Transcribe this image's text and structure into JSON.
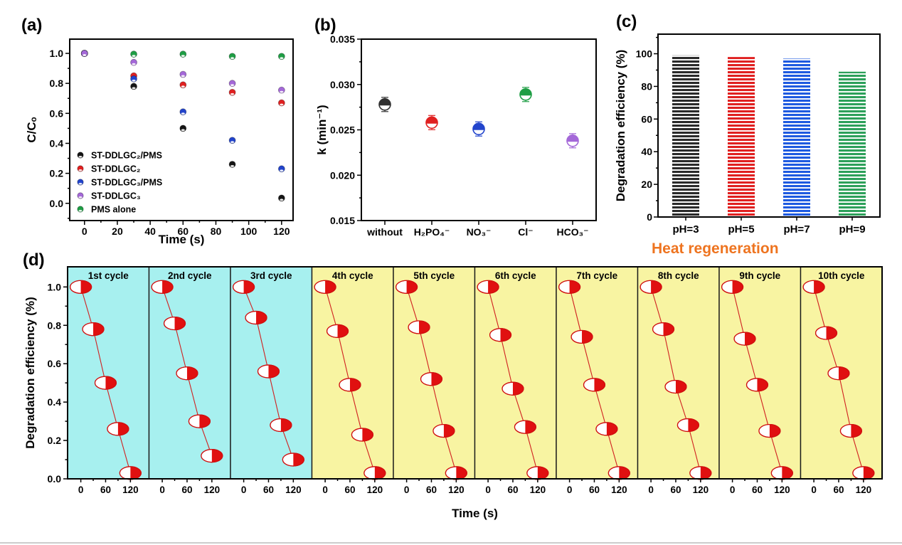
{
  "figure": {
    "background": "#ffffff"
  },
  "annotations": {
    "heat_regeneration": "Heat regeneration",
    "heat_color": "#ee7420"
  },
  "chart_data": [
    {
      "id": "a",
      "panel_label": "(a)",
      "type": "scatter",
      "xlabel": "Time (s)",
      "ylabel": "C/Cₒ",
      "x": [
        0,
        30,
        60,
        90,
        120
      ],
      "xlim": [
        -9,
        127
      ],
      "ylim": [
        -0.115,
        1.095
      ],
      "xticks": [
        0,
        20,
        40,
        60,
        80,
        100,
        120
      ],
      "yticks": [
        0.0,
        0.2,
        0.4,
        0.6,
        0.8,
        1.0
      ],
      "legend_position": "lower-left",
      "series": [
        {
          "name": "ST-DDLGC₂/PMS",
          "color": "#151515",
          "values": [
            1.0,
            0.78,
            0.5,
            0.26,
            0.035
          ]
        },
        {
          "name": "ST-DDLGC₂",
          "color": "#e02020",
          "values": [
            1.0,
            0.85,
            0.79,
            0.74,
            0.67
          ]
        },
        {
          "name": "ST-DDLGC₃/PMS",
          "color": "#2244cc",
          "values": [
            1.0,
            0.83,
            0.61,
            0.42,
            0.23
          ]
        },
        {
          "name": "ST-DDLGC₃",
          "color": "#a468d8",
          "values": [
            1.0,
            0.94,
            0.86,
            0.8,
            0.755
          ]
        },
        {
          "name": "PMS alone",
          "color": "#1f9e45",
          "values": [
            1.0,
            0.995,
            0.995,
            0.98,
            0.98
          ]
        }
      ],
      "draw_order": [
        0,
        1,
        2,
        4,
        3
      ]
    },
    {
      "id": "b",
      "panel_label": "(b)",
      "type": "scatter",
      "ylabel": "k (min⁻¹)",
      "categories": [
        "without",
        "H₂PO₄⁻",
        "NO₃⁻",
        "Cl⁻",
        "HCO₃⁻"
      ],
      "values": [
        0.0278,
        0.0258,
        0.0251,
        0.0289,
        0.0238
      ],
      "colors": [
        "#303030",
        "#e02020",
        "#2244cc",
        "#1f9e45",
        "#a468d8"
      ],
      "ylim": [
        0.015,
        0.035
      ],
      "yticks": [
        0.015,
        0.02,
        0.025,
        0.03,
        0.035
      ]
    },
    {
      "id": "c",
      "panel_label": "(c)",
      "type": "bar",
      "ylabel": "Degradation efficiency (%)",
      "categories": [
        "pH=3",
        "pH=5",
        "pH=7",
        "pH=9"
      ],
      "values": [
        99,
        98,
        97,
        89
      ],
      "colors": [
        "#2a2a2a",
        "#e02020",
        "#1e5ae0",
        "#2da05a"
      ],
      "ylim": [
        0,
        112
      ],
      "yticks": [
        0,
        20,
        40,
        60,
        80,
        100
      ],
      "bar_style": "horizontal-stripes"
    },
    {
      "id": "d",
      "panel_label": "(d)",
      "type": "line",
      "xlabel": "Time (s)",
      "ylabel": "Degradation efficiency (%)",
      "x": [
        0,
        30,
        60,
        90,
        120
      ],
      "xticks": [
        0,
        60,
        120
      ],
      "yticks": [
        0.0,
        0.2,
        0.4,
        0.6,
        0.8,
        1.0
      ],
      "xlim": [
        -32,
        165
      ],
      "ylim": [
        0,
        1.105
      ],
      "group_backgrounds": {
        "cyan": "#a7f0ef",
        "yellow": "#f8f4a2"
      },
      "line_color": "#d02020",
      "marker": {
        "left": "#ffffff",
        "right": "#e01010",
        "stroke": "#cf0f0f"
      },
      "cycles": [
        {
          "title": "1st cycle",
          "bg": "cyan",
          "values": [
            1.0,
            0.78,
            0.5,
            0.26,
            0.03
          ]
        },
        {
          "title": "2nd cycle",
          "bg": "cyan",
          "values": [
            1.0,
            0.81,
            0.55,
            0.3,
            0.12
          ]
        },
        {
          "title": "3rd cycle",
          "bg": "cyan",
          "values": [
            1.0,
            0.84,
            0.56,
            0.28,
            0.1
          ]
        },
        {
          "title": "4th cycle",
          "bg": "yellow",
          "values": [
            1.0,
            0.77,
            0.49,
            0.23,
            0.03
          ]
        },
        {
          "title": "5th cycle",
          "bg": "yellow",
          "values": [
            1.0,
            0.79,
            0.52,
            0.25,
            0.03
          ]
        },
        {
          "title": "6th cycle",
          "bg": "yellow",
          "values": [
            1.0,
            0.75,
            0.47,
            0.27,
            0.03
          ]
        },
        {
          "title": "7th cycle",
          "bg": "yellow",
          "values": [
            1.0,
            0.74,
            0.49,
            0.26,
            0.03
          ]
        },
        {
          "title": "8th cycle",
          "bg": "yellow",
          "values": [
            1.0,
            0.78,
            0.48,
            0.28,
            0.03
          ]
        },
        {
          "title": "9th cycle",
          "bg": "yellow",
          "values": [
            1.0,
            0.73,
            0.49,
            0.25,
            0.03
          ]
        },
        {
          "title": "10th cycle",
          "bg": "yellow",
          "values": [
            1.0,
            0.76,
            0.55,
            0.25,
            0.03
          ]
        }
      ]
    }
  ]
}
